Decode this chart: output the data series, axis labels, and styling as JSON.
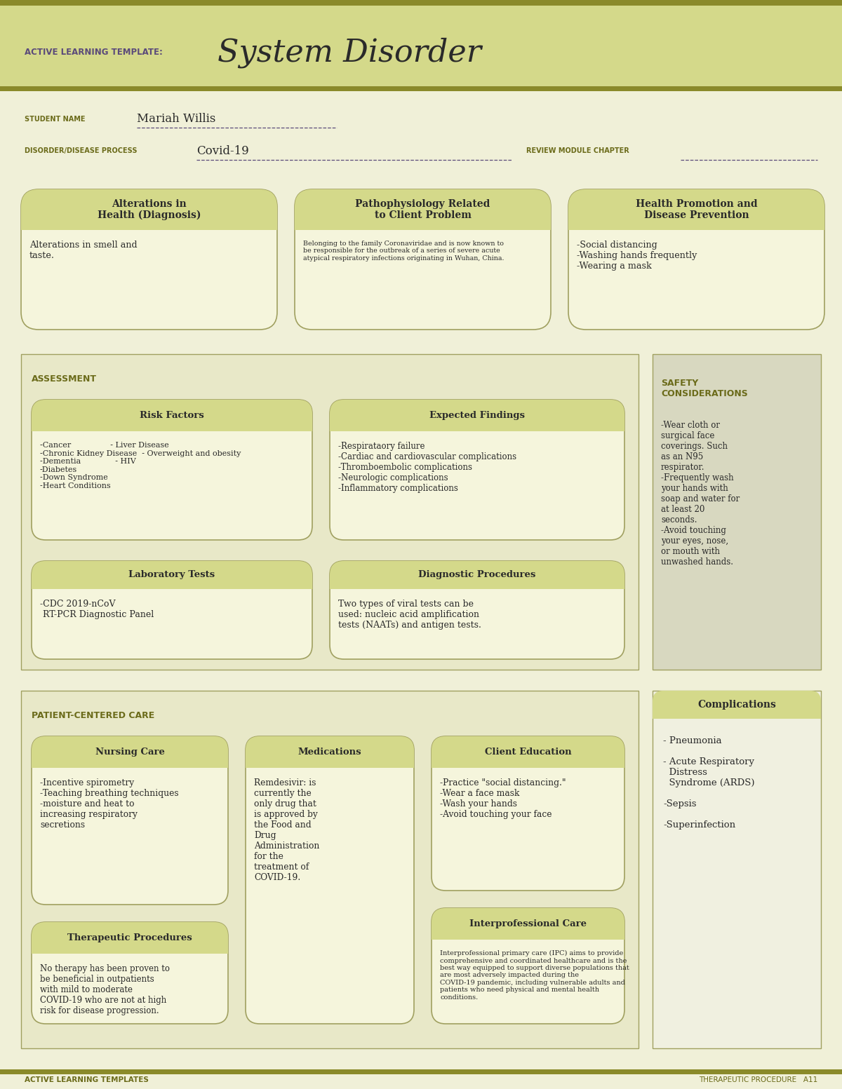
{
  "page_bg": "#f0f0d8",
  "header_bg": "#d4d98a",
  "olive_line": "#8a8a2a",
  "box_fill": "#f5f5dc",
  "assess_bg": "#e8e8c8",
  "safety_bg": "#d8d8c0",
  "comp_bg": "#f0f0e0",
  "header_yellow": "#d4d98a",
  "olive_text": "#6b6b1a",
  "dark_text": "#2a2a2a",
  "purple_text": "#5a4a7a",
  "edge_color": "#a0a060",
  "title_text": "System Disorder",
  "active_learning": "ACTIVE LEARNING TEMPLATE:",
  "student_label": "STUDENT NAME",
  "student_name": "Mariah Willis",
  "disorder_label": "DISORDER/DISEASE PROCESS",
  "disorder_name": "Covid-19",
  "review_label": "REVIEW MODULE CHAPTER",
  "section1_title": "Alterations in\nHealth (Diagnosis)",
  "section1_body": "Alterations in smell and\ntaste.",
  "section2_title": "Pathophysiology Related\nto Client Problem",
  "section2_body": "Belonging to the family Coronaviridae and is now known to\nbe responsible for the outbreak of a series of severe acute\natypical respiratory infections originating in Wuhan, China.",
  "section3_title": "Health Promotion and\nDisease Prevention",
  "section3_body": "-Social distancing\n-Washing hands frequently\n-Wearing a mask",
  "assessment_label": "ASSESSMENT",
  "safety_label": "SAFETY\nCONSIDERATIONS",
  "safety_body": "-Wear cloth or\nsurgical face\ncoverings. Such\nas an N95\nrespirator.\n-Frequently wash\nyour hands with\nsoap and water for\nat least 20\nseconds.\n-Avoid touching\nyour eyes, nose,\nor mouth with\nunwashed hands.",
  "risk_title": "Risk Factors",
  "risk_body": "-Cancer                - Liver Disease\n-Chronic Kidney Disease  - Overweight and obesity\n-Dementia              - HIV\n-Diabetes\n-Down Syndrome\n-Heart Conditions",
  "expected_title": "Expected Findings",
  "expected_body": "-Respirataory failure\n-Cardiac and cardiovascular complications\n-Thromboembolic complications\n-Neurologic complications\n-Inflammatory complications",
  "lab_title": "Laboratory Tests",
  "lab_body": "-CDC 2019-nCoV\n RT-PCR Diagnostic Panel",
  "diag_title": "Diagnostic Procedures",
  "diag_body": "Two types of viral tests can be\nused: nucleic acid amplification\ntests (NAATs) and antigen tests.",
  "patient_label": "PATIENT-CENTERED CARE",
  "nursing_title": "Nursing Care",
  "nursing_body": "-Incentive spirometry\n-Teaching breathing techniques\n-moisture and heat to\nincreasing respiratory\nsecretions",
  "meds_title": "Medications",
  "meds_body": "Remdesivir: is\ncurrently the\nonly drug that\nis approved by\nthe Food and\nDrug\nAdministration\nfor the\ntreatment of\nCOVID-19.",
  "client_ed_title": "Client Education",
  "client_ed_body": "-Practice \"social distancing.\"\n-Wear a face mask\n-Wash your hands\n-Avoid touching your face",
  "therapeutic_title": "Therapeutic Procedures",
  "therapeutic_body": "No therapy has been proven to\nbe beneficial in outpatients\nwith mild to moderate\nCOVID-19 who are not at high\nrisk for disease progression.",
  "interpro_title": "Interprofessional Care",
  "interpro_body": "Interprofessional primary care (IPC) aims to provide\ncomprehensive and coordinated healthcare and is the\nbest way equipped to support diverse populations that\nare most adversely impacted during the\nCOVID-19 pandemic, including vulnerable adults and\npatients who need physical and mental health\nconditions.",
  "complications_title": "Complications",
  "complications_body": "- Pneumonia\n\n- Acute Respiratory\n  Distress\n  Syndrome (ARDS)\n\n-Sepsis\n\n-Superinfection",
  "footer_left": "ACTIVE LEARNING TEMPLATES",
  "footer_right": "THERAPEUTIC PROCEDURE   A11"
}
